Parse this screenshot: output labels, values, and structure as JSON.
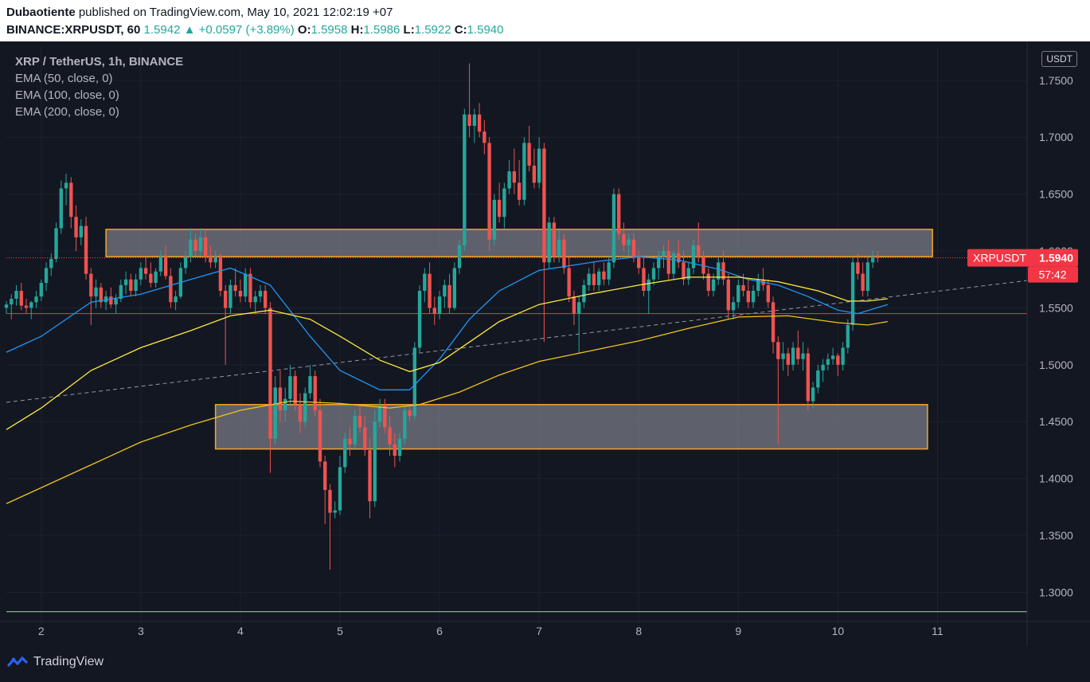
{
  "header": {
    "author": "Dubaotiente",
    "published": "published on TradingView.com, May 10, 2021 12:02:19 +07",
    "symbol_line": "BINANCE:XRPUSDT, 60",
    "last": "1.5942",
    "change_arrow": "▲",
    "change": "+0.0597 (+3.89%)",
    "o_label": "O:",
    "o": "1.5958",
    "h_label": "H:",
    "h": "1.5986",
    "l_label": "L:",
    "l": "1.5922",
    "c_label": "C:",
    "c": "1.5940"
  },
  "legend": {
    "title": "XRP / TetherUS, 1h, BINANCE",
    "ema50": "EMA (50, close, 0)",
    "ema100": "EMA (100, close, 0)",
    "ema200": "EMA (200, close, 0)"
  },
  "currency_button": "USDT",
  "price_tag": {
    "symbol": "XRPUSDT",
    "price": "1.5940",
    "countdown": "57:42"
  },
  "footer": {
    "brand": "TradingView"
  },
  "colors": {
    "background": "#131722",
    "up": "#26a69a",
    "down": "#ef5350",
    "ema50": "#2196f3",
    "ema100": "#ffeb3b",
    "ema200": "#f0c419",
    "zone_fill": "#787b86",
    "zone_border": "#f5a623",
    "grid": "#1e222d"
  },
  "chart_data": {
    "type": "candlestick",
    "title": "XRP / TetherUS, 1h, BINANCE",
    "ylim": [
      1.28,
      1.78
    ],
    "y_ticks": [
      "1.3000",
      "1.3500",
      "1.4000",
      "1.4500",
      "1.5000",
      "1.5500",
      "1.6000",
      "1.6500",
      "1.7000",
      "1.7500"
    ],
    "x_ticks": [
      "2",
      "3",
      "4",
      "5",
      "6",
      "7",
      "8",
      "9",
      "10",
      "11"
    ],
    "xlim": [
      1.65,
      11.9
    ],
    "horizontal_lines": [
      1.545,
      1.283
    ],
    "zones": [
      {
        "x0": 2.65,
        "x1": 10.95,
        "y0": 1.595,
        "y1": 1.619
      },
      {
        "x0": 3.75,
        "x1": 10.9,
        "y0": 1.426,
        "y1": 1.465
      }
    ],
    "trendline": {
      "x0": 1.65,
      "y0": 1.467,
      "x1": 11.9,
      "y1": 1.574
    },
    "series": [
      {
        "name": "EMA (50, close, 0)",
        "key": "ema50",
        "x": [
          1.65,
          2.0,
          2.5,
          3.0,
          3.5,
          3.9,
          4.3,
          4.7,
          5.0,
          5.4,
          5.7,
          6.0,
          6.3,
          6.6,
          7.0,
          7.3,
          7.6,
          8.0,
          8.4,
          8.8,
          9.1,
          9.4,
          9.7,
          10.0,
          10.2,
          10.5
        ],
        "y": [
          1.511,
          1.525,
          1.555,
          1.562,
          1.575,
          1.585,
          1.57,
          1.525,
          1.495,
          1.478,
          1.478,
          1.505,
          1.54,
          1.565,
          1.583,
          1.587,
          1.591,
          1.595,
          1.592,
          1.584,
          1.575,
          1.57,
          1.56,
          1.548,
          1.545,
          1.553
        ]
      },
      {
        "name": "EMA (100, close, 0)",
        "key": "ema100",
        "x": [
          1.65,
          2.0,
          2.5,
          3.0,
          3.5,
          3.9,
          4.3,
          4.7,
          5.0,
          5.4,
          5.7,
          6.0,
          6.3,
          6.6,
          7.0,
          7.5,
          8.0,
          8.5,
          9.0,
          9.4,
          9.8,
          10.1,
          10.3,
          10.5
        ],
        "y": [
          1.443,
          1.462,
          1.495,
          1.515,
          1.53,
          1.543,
          1.548,
          1.54,
          1.525,
          1.504,
          1.494,
          1.502,
          1.52,
          1.538,
          1.553,
          1.562,
          1.57,
          1.577,
          1.577,
          1.573,
          1.565,
          1.556,
          1.556,
          1.558
        ]
      },
      {
        "name": "EMA (200, close, 0)",
        "key": "ema200",
        "x": [
          1.65,
          2.0,
          2.5,
          3.0,
          3.5,
          4.0,
          4.5,
          5.0,
          5.5,
          5.8,
          6.2,
          6.6,
          7.0,
          7.5,
          8.0,
          8.5,
          9.0,
          9.5,
          10.0,
          10.3,
          10.5
        ],
        "y": [
          1.378,
          1.392,
          1.412,
          1.432,
          1.447,
          1.46,
          1.468,
          1.466,
          1.462,
          1.465,
          1.476,
          1.491,
          1.503,
          1.512,
          1.521,
          1.532,
          1.542,
          1.543,
          1.537,
          1.535,
          1.538
        ]
      }
    ],
    "candles": [
      [
        1.65,
        1.55,
        1.556,
        1.545,
        1.553
      ],
      [
        1.7,
        1.553,
        1.562,
        1.54,
        1.558
      ],
      [
        1.75,
        1.558,
        1.57,
        1.552,
        1.565
      ],
      [
        1.8,
        1.565,
        1.572,
        1.548,
        1.552
      ],
      [
        1.85,
        1.552,
        1.558,
        1.545,
        1.55
      ],
      [
        1.9,
        1.55,
        1.556,
        1.54,
        1.555
      ],
      [
        1.95,
        1.555,
        1.565,
        1.55,
        1.56
      ],
      [
        2.0,
        1.56,
        1.575,
        1.556,
        1.572
      ],
      [
        2.05,
        1.572,
        1.59,
        1.565,
        1.585
      ],
      [
        2.1,
        1.585,
        1.598,
        1.578,
        1.593
      ],
      [
        2.15,
        1.593,
        1.625,
        1.59,
        1.62
      ],
      [
        2.2,
        1.62,
        1.662,
        1.615,
        1.655
      ],
      [
        2.25,
        1.655,
        1.668,
        1.64,
        1.66
      ],
      [
        2.3,
        1.66,
        1.665,
        1.62,
        1.63
      ],
      [
        2.35,
        1.63,
        1.64,
        1.6,
        1.612
      ],
      [
        2.4,
        1.612,
        1.628,
        1.605,
        1.622
      ],
      [
        2.45,
        1.622,
        1.63,
        1.575,
        1.58
      ],
      [
        2.5,
        1.58,
        1.585,
        1.535,
        1.56
      ],
      [
        2.55,
        1.56,
        1.575,
        1.55,
        1.568
      ],
      [
        2.6,
        1.568,
        1.572,
        1.55,
        1.555
      ],
      [
        2.65,
        1.555,
        1.565,
        1.548,
        1.56
      ],
      [
        2.7,
        1.56,
        1.568,
        1.55,
        1.553
      ],
      [
        2.75,
        1.553,
        1.562,
        1.545,
        1.558
      ],
      [
        2.8,
        1.558,
        1.575,
        1.555,
        1.57
      ],
      [
        2.85,
        1.57,
        1.582,
        1.562,
        1.575
      ],
      [
        2.9,
        1.575,
        1.58,
        1.56,
        1.565
      ],
      [
        2.95,
        1.565,
        1.58,
        1.56,
        1.575
      ],
      [
        3.0,
        1.575,
        1.59,
        1.57,
        1.585
      ],
      [
        3.05,
        1.585,
        1.595,
        1.575,
        1.58
      ],
      [
        3.1,
        1.58,
        1.59,
        1.568,
        1.572
      ],
      [
        3.15,
        1.572,
        1.585,
        1.568,
        1.582
      ],
      [
        3.2,
        1.582,
        1.6,
        1.578,
        1.595
      ],
      [
        3.25,
        1.595,
        1.605,
        1.575,
        1.578
      ],
      [
        3.3,
        1.578,
        1.585,
        1.55,
        1.555
      ],
      [
        3.35,
        1.555,
        1.565,
        1.548,
        1.56
      ],
      [
        3.4,
        1.56,
        1.59,
        1.558,
        1.585
      ],
      [
        3.45,
        1.585,
        1.6,
        1.58,
        1.595
      ],
      [
        3.5,
        1.595,
        1.62,
        1.59,
        1.61
      ],
      [
        3.55,
        1.61,
        1.615,
        1.595,
        1.6
      ],
      [
        3.6,
        1.6,
        1.62,
        1.595,
        1.612
      ],
      [
        3.65,
        1.612,
        1.618,
        1.59,
        1.595
      ],
      [
        3.7,
        1.595,
        1.605,
        1.585,
        1.59
      ],
      [
        3.75,
        1.59,
        1.6,
        1.585,
        1.595
      ],
      [
        3.8,
        1.595,
        1.598,
        1.56,
        1.565
      ],
      [
        3.85,
        1.565,
        1.57,
        1.5,
        1.55
      ],
      [
        3.9,
        1.55,
        1.575,
        1.545,
        1.57
      ],
      [
        3.95,
        1.57,
        1.585,
        1.56,
        1.565
      ],
      [
        4.0,
        1.565,
        1.575,
        1.555,
        1.56
      ],
      [
        4.05,
        1.56,
        1.585,
        1.555,
        1.58
      ],
      [
        4.1,
        1.58,
        1.585,
        1.55,
        1.555
      ],
      [
        4.15,
        1.555,
        1.565,
        1.545,
        1.56
      ],
      [
        4.2,
        1.56,
        1.57,
        1.555,
        1.565
      ],
      [
        4.25,
        1.565,
        1.57,
        1.545,
        1.55
      ],
      [
        4.3,
        1.55,
        1.555,
        1.405,
        1.435
      ],
      [
        4.35,
        1.435,
        1.49,
        1.43,
        1.48
      ],
      [
        4.4,
        1.48,
        1.495,
        1.45,
        1.46
      ],
      [
        4.45,
        1.46,
        1.48,
        1.45,
        1.47
      ],
      [
        4.5,
        1.47,
        1.5,
        1.465,
        1.49
      ],
      [
        4.55,
        1.49,
        1.495,
        1.46,
        1.465
      ],
      [
        4.6,
        1.465,
        1.475,
        1.44,
        1.45
      ],
      [
        4.65,
        1.45,
        1.48,
        1.445,
        1.475
      ],
      [
        4.7,
        1.475,
        1.5,
        1.47,
        1.49
      ],
      [
        4.75,
        1.49,
        1.495,
        1.455,
        1.46
      ],
      [
        4.8,
        1.46,
        1.47,
        1.41,
        1.415
      ],
      [
        4.85,
        1.415,
        1.42,
        1.36,
        1.39
      ],
      [
        4.9,
        1.39,
        1.395,
        1.32,
        1.37
      ],
      [
        4.95,
        1.37,
        1.38,
        1.365,
        1.372
      ],
      [
        5.0,
        1.372,
        1.42,
        1.368,
        1.41
      ],
      [
        5.05,
        1.41,
        1.44,
        1.405,
        1.435
      ],
      [
        5.1,
        1.435,
        1.445,
        1.42,
        1.43
      ],
      [
        5.15,
        1.43,
        1.46,
        1.425,
        1.455
      ],
      [
        5.2,
        1.455,
        1.465,
        1.44,
        1.445
      ],
      [
        5.25,
        1.445,
        1.455,
        1.42,
        1.425
      ],
      [
        5.3,
        1.425,
        1.435,
        1.365,
        1.38
      ],
      [
        5.35,
        1.38,
        1.46,
        1.375,
        1.45
      ],
      [
        5.4,
        1.45,
        1.47,
        1.445,
        1.465
      ],
      [
        5.45,
        1.465,
        1.47,
        1.44,
        1.445
      ],
      [
        5.5,
        1.445,
        1.455,
        1.42,
        1.43
      ],
      [
        5.55,
        1.43,
        1.44,
        1.41,
        1.42
      ],
      [
        5.6,
        1.42,
        1.44,
        1.415,
        1.435
      ],
      [
        5.65,
        1.435,
        1.465,
        1.43,
        1.46
      ],
      [
        5.7,
        1.46,
        1.465,
        1.45,
        1.455
      ],
      [
        5.75,
        1.455,
        1.52,
        1.452,
        1.515
      ],
      [
        5.8,
        1.515,
        1.57,
        1.51,
        1.565
      ],
      [
        5.85,
        1.565,
        1.585,
        1.555,
        1.58
      ],
      [
        5.9,
        1.58,
        1.59,
        1.545,
        1.55
      ],
      [
        5.95,
        1.55,
        1.56,
        1.535,
        1.545
      ],
      [
        6.0,
        1.545,
        1.565,
        1.54,
        1.56
      ],
      [
        6.05,
        1.56,
        1.575,
        1.55,
        1.57
      ],
      [
        6.1,
        1.57,
        1.58,
        1.545,
        1.55
      ],
      [
        6.15,
        1.55,
        1.59,
        1.548,
        1.585
      ],
      [
        6.2,
        1.585,
        1.61,
        1.58,
        1.605
      ],
      [
        6.25,
        1.605,
        1.725,
        1.6,
        1.72
      ],
      [
        6.3,
        1.72,
        1.765,
        1.7,
        1.71
      ],
      [
        6.35,
        1.71,
        1.725,
        1.695,
        1.72
      ],
      [
        6.4,
        1.72,
        1.73,
        1.7,
        1.705
      ],
      [
        6.45,
        1.705,
        1.715,
        1.685,
        1.695
      ],
      [
        6.5,
        1.695,
        1.7,
        1.6,
        1.61
      ],
      [
        6.55,
        1.61,
        1.65,
        1.605,
        1.645
      ],
      [
        6.6,
        1.645,
        1.66,
        1.625,
        1.63
      ],
      [
        6.65,
        1.63,
        1.66,
        1.62,
        1.655
      ],
      [
        6.7,
        1.655,
        1.68,
        1.65,
        1.67
      ],
      [
        6.75,
        1.67,
        1.69,
        1.65,
        1.66
      ],
      [
        6.8,
        1.66,
        1.68,
        1.64,
        1.645
      ],
      [
        6.85,
        1.645,
        1.7,
        1.64,
        1.695
      ],
      [
        6.9,
        1.695,
        1.71,
        1.67,
        1.675
      ],
      [
        6.95,
        1.675,
        1.69,
        1.655,
        1.66
      ],
      [
        7.0,
        1.66,
        1.7,
        1.655,
        1.69
      ],
      [
        7.05,
        1.69,
        1.695,
        1.52,
        1.59
      ],
      [
        7.1,
        1.59,
        1.63,
        1.585,
        1.625
      ],
      [
        7.15,
        1.625,
        1.63,
        1.59,
        1.595
      ],
      [
        7.2,
        1.595,
        1.62,
        1.59,
        1.61
      ],
      [
        7.25,
        1.61,
        1.615,
        1.58,
        1.585
      ],
      [
        7.3,
        1.585,
        1.595,
        1.555,
        1.56
      ],
      [
        7.35,
        1.56,
        1.565,
        1.535,
        1.545
      ],
      [
        7.4,
        1.545,
        1.56,
        1.51,
        1.555
      ],
      [
        7.45,
        1.555,
        1.575,
        1.55,
        1.57
      ],
      [
        7.5,
        1.57,
        1.585,
        1.565,
        1.58
      ],
      [
        7.55,
        1.58,
        1.59,
        1.565,
        1.57
      ],
      [
        7.6,
        1.57,
        1.585,
        1.565,
        1.582
      ],
      [
        7.65,
        1.582,
        1.59,
        1.57,
        1.575
      ],
      [
        7.7,
        1.575,
        1.595,
        1.57,
        1.59
      ],
      [
        7.75,
        1.59,
        1.655,
        1.585,
        1.65
      ],
      [
        7.8,
        1.65,
        1.655,
        1.61,
        1.615
      ],
      [
        7.85,
        1.615,
        1.625,
        1.6,
        1.605
      ],
      [
        7.9,
        1.605,
        1.615,
        1.595,
        1.61
      ],
      [
        7.95,
        1.61,
        1.615,
        1.59,
        1.595
      ],
      [
        8.0,
        1.595,
        1.6,
        1.58,
        1.585
      ],
      [
        8.05,
        1.585,
        1.595,
        1.56,
        1.565
      ],
      [
        8.1,
        1.565,
        1.58,
        1.545,
        1.575
      ],
      [
        8.15,
        1.575,
        1.59,
        1.57,
        1.585
      ],
      [
        8.2,
        1.585,
        1.6,
        1.575,
        1.595
      ],
      [
        8.25,
        1.595,
        1.605,
        1.585,
        1.6
      ],
      [
        8.3,
        1.6,
        1.61,
        1.575,
        1.58
      ],
      [
        8.35,
        1.58,
        1.6,
        1.575,
        1.598
      ],
      [
        8.4,
        1.598,
        1.61,
        1.585,
        1.59
      ],
      [
        8.45,
        1.59,
        1.6,
        1.57,
        1.575
      ],
      [
        8.5,
        1.575,
        1.59,
        1.57,
        1.585
      ],
      [
        8.55,
        1.585,
        1.61,
        1.58,
        1.605
      ],
      [
        8.6,
        1.605,
        1.625,
        1.59,
        1.595
      ],
      [
        8.65,
        1.595,
        1.6,
        1.575,
        1.58
      ],
      [
        8.7,
        1.58,
        1.585,
        1.56,
        1.565
      ],
      [
        8.75,
        1.565,
        1.58,
        1.56,
        1.575
      ],
      [
        8.8,
        1.575,
        1.595,
        1.57,
        1.59
      ],
      [
        8.85,
        1.59,
        1.6,
        1.57,
        1.575
      ],
      [
        8.9,
        1.575,
        1.58,
        1.54,
        1.548
      ],
      [
        8.95,
        1.548,
        1.56,
        1.54,
        1.555
      ],
      [
        9.0,
        1.555,
        1.575,
        1.55,
        1.57
      ],
      [
        9.05,
        1.57,
        1.58,
        1.56,
        1.565
      ],
      [
        9.1,
        1.565,
        1.575,
        1.55,
        1.555
      ],
      [
        9.15,
        1.555,
        1.57,
        1.55,
        1.565
      ],
      [
        9.2,
        1.565,
        1.58,
        1.56,
        1.575
      ],
      [
        9.25,
        1.575,
        1.585,
        1.565,
        1.57
      ],
      [
        9.3,
        1.57,
        1.575,
        1.55,
        1.555
      ],
      [
        9.35,
        1.555,
        1.56,
        1.51,
        1.52
      ],
      [
        9.4,
        1.52,
        1.525,
        1.43,
        1.505
      ],
      [
        9.45,
        1.505,
        1.52,
        1.495,
        1.51
      ],
      [
        9.5,
        1.51,
        1.515,
        1.49,
        1.5
      ],
      [
        9.55,
        1.5,
        1.52,
        1.495,
        1.515
      ],
      [
        9.6,
        1.515,
        1.53,
        1.5,
        1.505
      ],
      [
        9.65,
        1.505,
        1.52,
        1.495,
        1.51
      ],
      [
        9.7,
        1.51,
        1.515,
        1.46,
        1.468
      ],
      [
        9.75,
        1.468,
        1.485,
        1.462,
        1.48
      ],
      [
        9.8,
        1.48,
        1.5,
        1.475,
        1.495
      ],
      [
        9.85,
        1.495,
        1.505,
        1.485,
        1.5
      ],
      [
        9.9,
        1.5,
        1.51,
        1.495,
        1.505
      ],
      [
        9.95,
        1.505,
        1.515,
        1.5,
        1.508
      ],
      [
        10.0,
        1.508,
        1.51,
        1.49,
        1.5
      ],
      [
        10.05,
        1.5,
        1.52,
        1.495,
        1.515
      ],
      [
        10.1,
        1.515,
        1.54,
        1.51,
        1.535
      ],
      [
        10.15,
        1.535,
        1.595,
        1.53,
        1.59
      ],
      [
        10.2,
        1.59,
        1.598,
        1.575,
        1.58
      ],
      [
        10.25,
        1.58,
        1.59,
        1.56,
        1.565
      ],
      [
        10.3,
        1.565,
        1.595,
        1.56,
        1.59
      ],
      [
        10.35,
        1.59,
        1.6,
        1.585,
        1.595
      ],
      [
        10.4,
        1.595,
        1.6,
        1.59,
        1.594
      ]
    ]
  }
}
